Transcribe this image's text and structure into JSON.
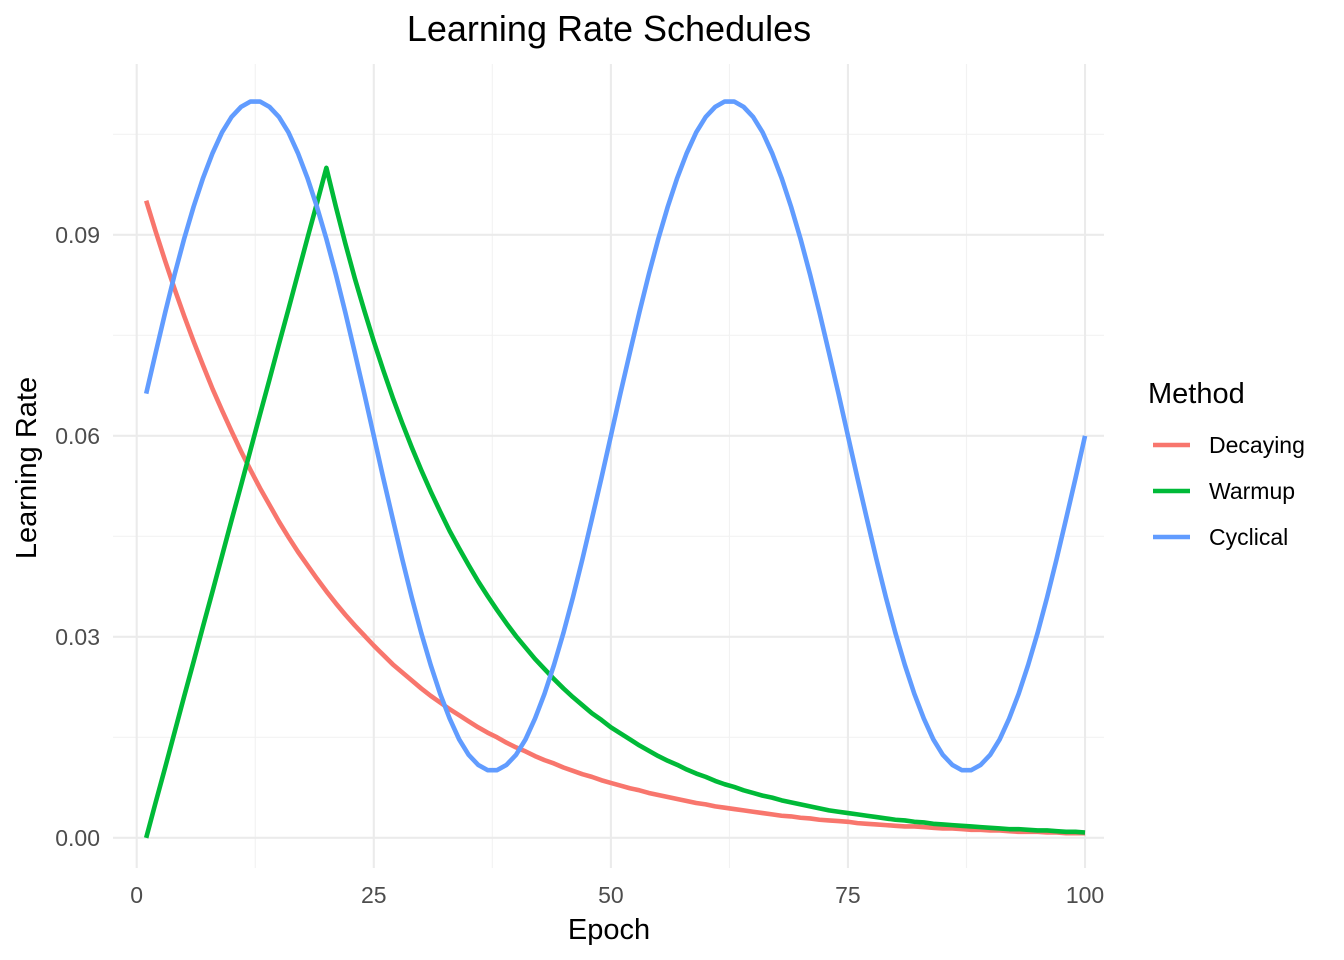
{
  "chart_data": {
    "type": "line",
    "title": "Learning Rate Schedules",
    "xlabel": "Epoch",
    "ylabel": "Learning Rate",
    "xlim": [
      -2.5,
      102
    ],
    "ylim": [
      -0.0045,
      0.1155
    ],
    "x_ticks": [
      0,
      25,
      50,
      75,
      100
    ],
    "x_tick_labels": [
      "0",
      "25",
      "50",
      "75",
      "100"
    ],
    "y_ticks": [
      0,
      0.03,
      0.06,
      0.09
    ],
    "y_tick_labels": [
      "0.00",
      "0.03",
      "0.06",
      "0.09"
    ],
    "grid": true,
    "legend": {
      "title": "Method",
      "position": "right"
    },
    "x": [
      1,
      2,
      3,
      4,
      5,
      6,
      7,
      8,
      9,
      10,
      11,
      12,
      13,
      14,
      15,
      16,
      17,
      18,
      19,
      20,
      21,
      22,
      23,
      24,
      25,
      26,
      27,
      28,
      29,
      30,
      31,
      32,
      33,
      34,
      35,
      36,
      37,
      38,
      39,
      40,
      41,
      42,
      43,
      44,
      45,
      46,
      47,
      48,
      49,
      50,
      51,
      52,
      53,
      54,
      55,
      56,
      57,
      58,
      59,
      60,
      61,
      62,
      63,
      64,
      65,
      66,
      67,
      68,
      69,
      70,
      71,
      72,
      73,
      74,
      75,
      76,
      77,
      78,
      79,
      80,
      81,
      82,
      83,
      84,
      85,
      86,
      87,
      88,
      89,
      90,
      91,
      92,
      93,
      94,
      95,
      96,
      97,
      98,
      99,
      100
    ],
    "series": [
      {
        "name": "Decaying",
        "color": "#F8766D",
        "values": [
          0.0951,
          0.0905,
          0.0861,
          0.0819,
          0.0779,
          0.0741,
          0.0705,
          0.067,
          0.0638,
          0.0607,
          0.0577,
          0.0549,
          0.0522,
          0.0497,
          0.0472,
          0.0449,
          0.0427,
          0.0407,
          0.0387,
          0.0368,
          0.035,
          0.0333,
          0.0317,
          0.0302,
          0.0287,
          0.0273,
          0.0259,
          0.0247,
          0.0235,
          0.0223,
          0.0212,
          0.0202,
          0.0192,
          0.0183,
          0.0174,
          0.0165,
          0.0157,
          0.015,
          0.0142,
          0.0135,
          0.0129,
          0.0122,
          0.0116,
          0.0111,
          0.0105,
          0.01,
          0.0095,
          0.0091,
          0.0086,
          0.0082,
          0.0078,
          0.0074,
          0.0071,
          0.0067,
          0.0064,
          0.0061,
          0.0058,
          0.0055,
          0.0052,
          0.005,
          0.0047,
          0.0045,
          0.0043,
          0.0041,
          0.0039,
          0.0037,
          0.0035,
          0.0033,
          0.0032,
          0.003,
          0.0029,
          0.0027,
          0.0026,
          0.0025,
          0.0024,
          0.0022,
          0.0021,
          0.002,
          0.0019,
          0.0018,
          0.0017,
          0.0017,
          0.0016,
          0.0015,
          0.0014,
          0.0014,
          0.0013,
          0.0012,
          0.0012,
          0.0011,
          0.0011,
          0.001,
          0.0009,
          0.0009,
          0.0009,
          0.0008,
          0.0008,
          0.0007,
          0.0007,
          0.0007
        ]
      },
      {
        "name": "Warmup",
        "color": "#00BA38",
        "values": [
          0.0,
          0.0053,
          0.0105,
          0.0158,
          0.0211,
          0.0263,
          0.0316,
          0.0368,
          0.0421,
          0.0474,
          0.0526,
          0.0579,
          0.0632,
          0.0684,
          0.0737,
          0.0789,
          0.0842,
          0.0895,
          0.0947,
          0.1,
          0.0942,
          0.0887,
          0.0835,
          0.0787,
          0.0741,
          0.0698,
          0.0657,
          0.0619,
          0.0583,
          0.0549,
          0.0517,
          0.0487,
          0.0458,
          0.0432,
          0.0407,
          0.0383,
          0.0361,
          0.034,
          0.032,
          0.0301,
          0.0284,
          0.0267,
          0.0252,
          0.0237,
          0.0223,
          0.021,
          0.0198,
          0.0186,
          0.0176,
          0.0165,
          0.0156,
          0.0147,
          0.0138,
          0.013,
          0.0122,
          0.0115,
          0.0109,
          0.0102,
          0.0096,
          0.0091,
          0.0085,
          0.008,
          0.0076,
          0.0071,
          0.0067,
          0.0063,
          0.006,
          0.0056,
          0.0053,
          0.005,
          0.0047,
          0.0044,
          0.0041,
          0.0039,
          0.0037,
          0.0035,
          0.0033,
          0.0031,
          0.0029,
          0.0027,
          0.0026,
          0.0024,
          0.0023,
          0.0021,
          0.002,
          0.0019,
          0.0018,
          0.0017,
          0.0016,
          0.0015,
          0.0014,
          0.0013,
          0.0013,
          0.0012,
          0.0011,
          0.0011,
          0.001,
          0.0009,
          0.0009,
          0.0008
        ]
      },
      {
        "name": "Cyclical",
        "color": "#619CFF",
        "values": [
          0.0663,
          0.0724,
          0.0784,
          0.0841,
          0.0894,
          0.0942,
          0.0985,
          0.1022,
          0.1053,
          0.1076,
          0.1091,
          0.1099,
          0.1099,
          0.1091,
          0.1076,
          0.1053,
          0.1022,
          0.0985,
          0.0942,
          0.0894,
          0.0841,
          0.0784,
          0.0724,
          0.0663,
          0.06,
          0.0537,
          0.0476,
          0.0416,
          0.0359,
          0.0306,
          0.0258,
          0.0215,
          0.0178,
          0.0147,
          0.0124,
          0.0109,
          0.0101,
          0.0101,
          0.0109,
          0.0124,
          0.0147,
          0.0178,
          0.0215,
          0.0258,
          0.0306,
          0.0359,
          0.0416,
          0.0476,
          0.0537,
          0.06,
          0.0663,
          0.0724,
          0.0784,
          0.0841,
          0.0894,
          0.0942,
          0.0985,
          0.1022,
          0.1053,
          0.1076,
          0.1091,
          0.1099,
          0.1099,
          0.1091,
          0.1076,
          0.1053,
          0.1022,
          0.0985,
          0.0942,
          0.0894,
          0.0841,
          0.0784,
          0.0724,
          0.0663,
          0.06,
          0.0537,
          0.0476,
          0.0416,
          0.0359,
          0.0306,
          0.0258,
          0.0215,
          0.0178,
          0.0147,
          0.0124,
          0.0109,
          0.0101,
          0.0101,
          0.0109,
          0.0124,
          0.0147,
          0.0178,
          0.0215,
          0.0258,
          0.0306,
          0.0359,
          0.0416,
          0.0476,
          0.0537,
          0.06
        ]
      }
    ]
  }
}
